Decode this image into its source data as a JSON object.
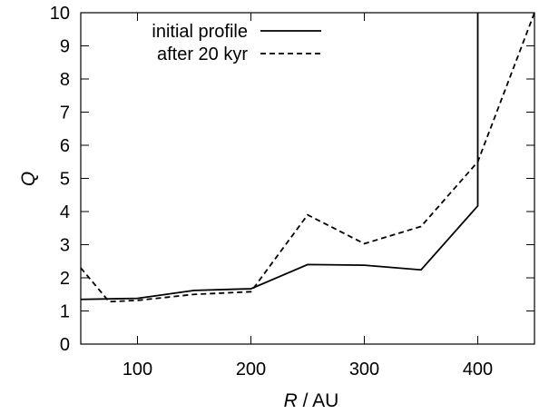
{
  "chart_data": {
    "type": "line",
    "title": "",
    "xlabel_var": "R",
    "xlabel_unit": " / AU",
    "ylabel": "Q",
    "xlim": [
      50,
      450
    ],
    "ylim": [
      0,
      10
    ],
    "xticks": [
      100,
      200,
      300,
      400
    ],
    "yticks": [
      0,
      1,
      2,
      3,
      4,
      5,
      6,
      7,
      8,
      9,
      10
    ],
    "grid": false,
    "legend_position": "top-left",
    "series": [
      {
        "name": "initial profile",
        "style": "solid",
        "x": [
          50,
          100,
          150,
          200,
          250,
          300,
          350,
          400,
          400
        ],
        "y": [
          1.35,
          1.38,
          1.62,
          1.67,
          2.4,
          2.38,
          2.24,
          4.17,
          10
        ]
      },
      {
        "name": "after 20 kyr",
        "style": "dashed",
        "x": [
          50,
          75,
          100,
          150,
          200,
          250,
          300,
          350,
          400,
          450
        ],
        "y": [
          2.3,
          1.28,
          1.32,
          1.5,
          1.58,
          3.9,
          3.03,
          3.55,
          5.5,
          10
        ]
      }
    ]
  }
}
